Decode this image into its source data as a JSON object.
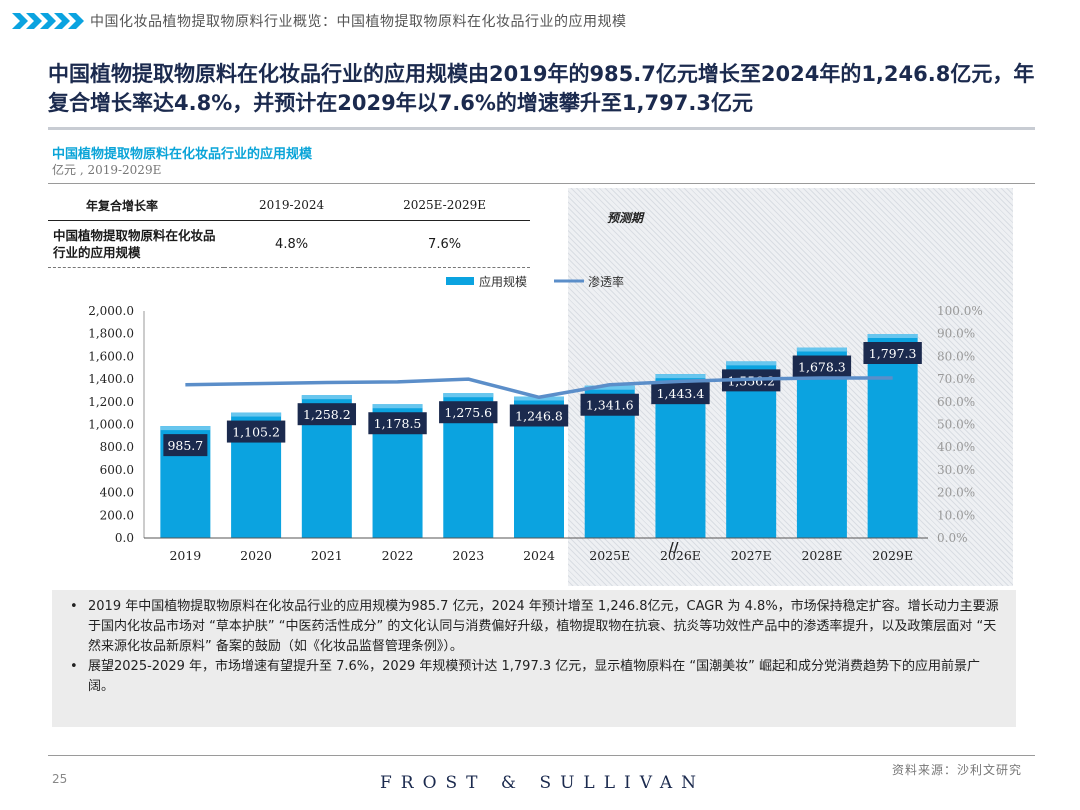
{
  "header": {
    "title": "中国化妆品植物提取物原料行业概览：中国植物提取物原料在化妆品行业的应用规模"
  },
  "headline": "中国植物提取物原料在化妆品行业的应用规模由2019年的985.7亿元增长至2024年的1,246.8亿元，年复合增长率达4.8%，并预计在2029年以7.6%的增速攀升至1,797.3亿元",
  "cagr_table": {
    "header": [
      "年复合增长率",
      "2019-2024",
      "2025E-2029E"
    ],
    "row_label": "中国植物提取物原料在化妆品行业的应用规模",
    "values": [
      "4.8%",
      "7.6%"
    ]
  },
  "forecast_label": "预测期",
  "notes": [
    "2019 年中国植物提取物原料在化妆品行业的应用规模为985.7 亿元，2024 年预计增至 1,246.8亿元，CAGR 为 4.8%，市场保持稳定扩容。增长动力主要源于国内化妆品市场对 “草本护肤” “中医药活性成分” 的文化认同与消费偏好升级，植物提取物在抗衰、抗炎等功效性产品中的渗透率提升，以及政策层面对 “天然来源化妆品新原料” 备案的鼓励（如《化妆品监督管理条例》）。",
    "展望2025-2029 年，市场增速有望提升至 7.6%，2029 年规模预计达 1,797.3 亿元，显示植物原料在 “国潮美妆” 崛起和成分党消费趋势下的应用前景广阔。"
  ],
  "footer": {
    "page": "25",
    "brand": "FROST & SULLIVAN",
    "source": "资料来源：沙利文研究"
  },
  "colors": {
    "bar": "#0ba3e0",
    "bar_top": "#68c6ee",
    "label_bg": "#1b2a4e",
    "line": "#5b8ec9",
    "headline": "#1b2a4e",
    "subtitle": "#0aa4d8"
  },
  "chart_data": {
    "type": "bar",
    "title": "中国植物提取物原料在化妆品行业的应用规模",
    "subtitle": "亿元 , 2019-2029E",
    "categories": [
      "2019",
      "2020",
      "2021",
      "2022",
      "2023",
      "2024",
      "2025E",
      "2026E",
      "2027E",
      "2028E",
      "2029E"
    ],
    "series": [
      {
        "name": "应用规模",
        "axis": "left",
        "values": [
          985.7,
          1105.2,
          1258.2,
          1178.5,
          1275.6,
          1246.8,
          1341.6,
          1443.4,
          1556.2,
          1678.3,
          1797.3
        ],
        "labels": [
          "985.7",
          "1,105.2",
          "1,258.2",
          "1,178.5",
          "1,275.6",
          "1,246.8",
          "1,341.6",
          "1,443.4",
          "1,556.2",
          "1,678.3",
          "1,797.3"
        ]
      },
      {
        "name": "渗透率",
        "type": "line",
        "axis": "right",
        "values": [
          67.5,
          68.0,
          68.5,
          68.8,
          70.0,
          62.0,
          67.5,
          69.0,
          70.0,
          70.5,
          70.5
        ]
      }
    ],
    "y_left": {
      "min": 0,
      "max": 2000,
      "step": 200,
      "tick_labels": [
        "0.0",
        "200.0",
        "400.0",
        "600.0",
        "800.0",
        "1,000.0",
        "1,200.0",
        "1,400.0",
        "1,600.0",
        "1,800.0",
        "2,000.0"
      ]
    },
    "y_right": {
      "min": 0,
      "max": 100,
      "step": 10,
      "tick_labels": [
        "0.0%",
        "10.0%",
        "20.0%",
        "30.0%",
        "40.0%",
        "50.0%",
        "60.0%",
        "70.0%",
        "80.0%",
        "90.0%",
        "100.0%"
      ]
    },
    "legend": {
      "position": "top-center",
      "bar_label": "应用规模",
      "line_label": "渗透率"
    },
    "axis_break_marker": "//",
    "forecast_start": "2025E"
  }
}
